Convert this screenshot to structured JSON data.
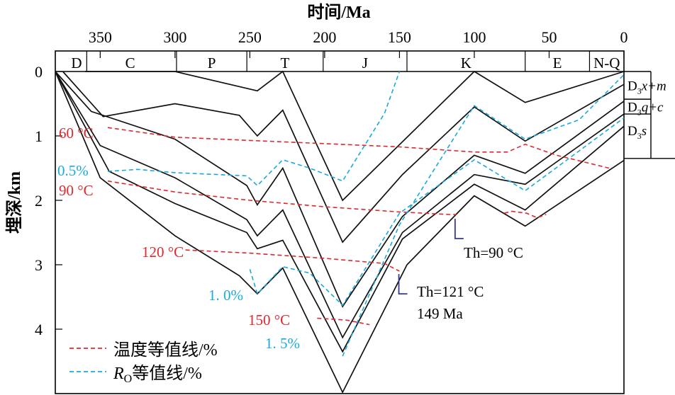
{
  "chart_data": {
    "type": "line",
    "title": "",
    "xlabel": "时间/Ma",
    "ylabel": "埋深/km",
    "xlim": [
      380,
      0
    ],
    "ylim": [
      0,
      5
    ],
    "x_ticks": [
      350,
      300,
      250,
      200,
      150,
      100,
      50,
      0
    ],
    "y_ticks": [
      0,
      1,
      2,
      3,
      4
    ],
    "periods": [
      {
        "label": "D",
        "start": 380,
        "end": 359
      },
      {
        "label": "C",
        "start": 359,
        "end": 299
      },
      {
        "label": "P",
        "start": 299,
        "end": 252
      },
      {
        "label": "T",
        "start": 252,
        "end": 201
      },
      {
        "label": "J",
        "start": 201,
        "end": 145
      },
      {
        "label": "K",
        "start": 145,
        "end": 66
      },
      {
        "label": "E",
        "start": 66,
        "end": 23
      },
      {
        "label": "N-Q",
        "start": 23,
        "end": 0
      }
    ],
    "strata": [
      {
        "label_base": "D",
        "label_sub": "3",
        "label_rest": "x+m",
        "top_km": 0,
        "bottom_km": 0.43
      },
      {
        "label_base": "D",
        "label_sub": "3",
        "label_rest": "q+c",
        "top_km": 0.43,
        "bottom_km": 0.66
      },
      {
        "label_base": "D",
        "label_sub": "3",
        "label_rest": "s",
        "top_km": 0.66,
        "bottom_km": 1.35
      }
    ],
    "burial_curves": [
      {
        "points": [
          [
            360,
            0
          ],
          [
            300,
            0
          ],
          [
            245,
            0.3
          ],
          [
            228,
            0
          ],
          [
            188,
            2
          ],
          [
            100,
            0
          ],
          [
            66,
            0.48
          ],
          [
            0,
            0
          ]
        ]
      },
      {
        "points": [
          [
            375,
            0
          ],
          [
            348,
            0.7
          ],
          [
            300,
            0.5
          ],
          [
            257,
            0.68
          ],
          [
            245,
            1
          ],
          [
            228,
            0.6
          ],
          [
            188,
            2.65
          ],
          [
            148,
            1.6
          ],
          [
            100,
            0.55
          ],
          [
            66,
            1.08
          ],
          [
            0,
            0.2
          ]
        ]
      },
      {
        "points": [
          [
            380,
            0
          ],
          [
            356,
            0.62
          ],
          [
            300,
            1.05
          ],
          [
            252,
            1.77
          ],
          [
            245,
            2.07
          ],
          [
            228,
            1.5
          ],
          [
            188,
            3.65
          ],
          [
            148,
            2.25
          ],
          [
            100,
            1.3
          ],
          [
            66,
            1.58
          ],
          [
            0,
            0.46
          ]
        ]
      },
      {
        "points": [
          [
            380,
            0
          ],
          [
            350,
            1.15
          ],
          [
            300,
            1.65
          ],
          [
            252,
            2.3
          ],
          [
            245,
            2.55
          ],
          [
            228,
            2.15
          ],
          [
            188,
            4.13
          ],
          [
            148,
            2.5
          ],
          [
            100,
            1.6
          ],
          [
            66,
            1.75
          ],
          [
            0,
            0.66
          ]
        ]
      },
      {
        "points": [
          [
            380,
            0
          ],
          [
            344,
            1.55
          ],
          [
            300,
            2.05
          ],
          [
            252,
            2.5
          ],
          [
            245,
            2.75
          ],
          [
            228,
            2.62
          ],
          [
            188,
            4.35
          ],
          [
            148,
            2.6
          ],
          [
            100,
            1.75
          ],
          [
            66,
            2.15
          ],
          [
            0,
            0.85
          ]
        ]
      },
      {
        "points": [
          [
            380,
            0
          ],
          [
            350,
            1.65
          ],
          [
            300,
            2.55
          ],
          [
            257,
            3.17
          ],
          [
            245,
            3.45
          ],
          [
            228,
            3.05
          ],
          [
            188,
            4.98
          ],
          [
            145,
            3
          ],
          [
            100,
            1.93
          ],
          [
            66,
            2.4
          ],
          [
            0,
            1.38
          ]
        ]
      }
    ],
    "temperature_isolines": [
      {
        "label": "60 °C",
        "points": [
          [
            345,
            0.87
          ],
          [
            300,
            1.02
          ],
          [
            250,
            1.07
          ],
          [
            200,
            1.12
          ],
          [
            150,
            1.17
          ],
          [
            100,
            1.25
          ],
          [
            78,
            1.25
          ],
          [
            66,
            1.13
          ],
          [
            45,
            1.3
          ],
          [
            10,
            1.5
          ]
        ]
      },
      {
        "label": "90 °C",
        "points": [
          [
            345,
            1.7
          ],
          [
            300,
            1.87
          ],
          [
            250,
            2
          ],
          [
            200,
            2.1
          ],
          [
            150,
            2.18
          ],
          [
            117,
            2.22
          ],
          [
            112,
            2.22
          ]
        ]
      },
      {
        "label": "120 °C",
        "points": [
          [
            293,
            2.77
          ],
          [
            250,
            2.82
          ],
          [
            200,
            2.9
          ],
          [
            160,
            2.98
          ],
          [
            150,
            3.1
          ]
        ]
      },
      {
        "label": "150 °C",
        "points": [
          [
            205,
            3.83
          ],
          [
            185,
            3.86
          ],
          [
            170,
            3.93
          ]
        ]
      },
      {
        "points": [
          [
            80,
            2.2
          ],
          [
            75,
            2.17
          ],
          [
            65,
            2.2
          ],
          [
            58,
            2.27
          ],
          [
            52,
            2.22
          ]
        ]
      }
    ],
    "ro_isolines": [
      {
        "label": "0.5%",
        "points": [
          [
            345,
            1.55
          ],
          [
            325,
            1.52
          ],
          [
            300,
            1.57
          ],
          [
            252,
            1.62
          ],
          [
            245,
            1.77
          ],
          [
            228,
            1.37
          ],
          [
            210,
            1.5
          ],
          [
            188,
            1.7
          ],
          [
            160,
            0.65
          ],
          [
            150,
            0
          ]
        ]
      },
      {
        "label": "1. 0%",
        "points": [
          [
            250,
            3.07
          ],
          [
            245,
            3.45
          ],
          [
            228,
            3.03
          ],
          [
            210,
            3.13
          ],
          [
            188,
            3.63
          ],
          [
            150,
            2.2
          ],
          [
            100,
            1.37
          ],
          [
            66,
            1.85
          ],
          [
            0,
            0.72
          ]
        ]
      },
      {
        "label": "1. 5%",
        "points": [
          [
            188,
            4.42
          ],
          [
            150,
            2.38
          ],
          [
            100,
            0.53
          ],
          [
            66,
            1.05
          ],
          [
            30,
            0.75
          ],
          [
            0,
            0.05
          ]
        ]
      }
    ],
    "annotations": [
      {
        "text": "Th=90 °C",
        "x": 110,
        "y": 2.22
      },
      {
        "text": "Th=121 °C",
        "text2": "149 Ma",
        "x": 149,
        "y": 3.1
      }
    ],
    "legend": [
      {
        "label": "温度等值线/%",
        "color": "#e0282d"
      },
      {
        "label_italic": "R",
        "label_sub": "O",
        "label_rest": "等值线/%",
        "color": "#1aa9dc"
      }
    ],
    "colors": {
      "temperature": "#e0282d",
      "ro": "#1aa9dc",
      "burial": "#111111",
      "annotation": "#3a3a8c"
    }
  }
}
